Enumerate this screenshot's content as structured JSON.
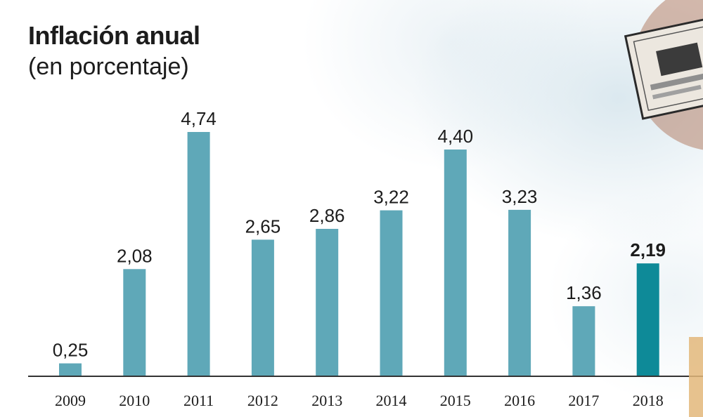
{
  "chart_data": {
    "type": "bar",
    "title": "Inflación anual",
    "subtitle": "(en porcentaje)",
    "categories": [
      "2009",
      "2010",
      "2011",
      "2012",
      "2013",
      "2014",
      "2015",
      "2016",
      "2017",
      "2018"
    ],
    "values": [
      0.25,
      2.08,
      4.74,
      2.65,
      2.86,
      3.22,
      4.4,
      3.23,
      1.36,
      2.19
    ],
    "value_labels": [
      "0,25",
      "2,08",
      "4,74",
      "2,65",
      "2,86",
      "3,22",
      "4,40",
      "3,23",
      "1,36",
      "2,19"
    ],
    "highlight_index": 9,
    "ylim": [
      0,
      4.74
    ],
    "grid": false,
    "colors": {
      "bar": "#5fa8b8",
      "highlight": "#0e8a98",
      "axis": "#333333",
      "text": "#1c1c1c"
    }
  }
}
